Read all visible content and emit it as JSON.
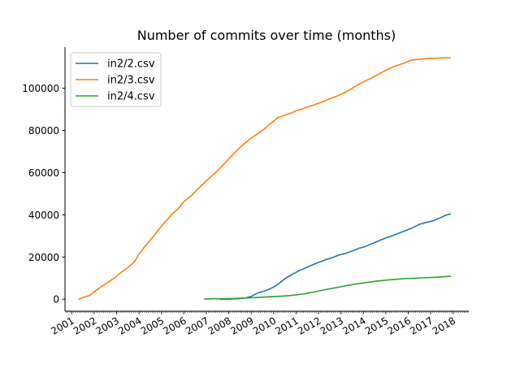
{
  "chart_data": {
    "type": "line",
    "title": "Number of commits over time (months)",
    "xlabel": "",
    "ylabel": "",
    "xlim": [
      2000.7,
      2018.7
    ],
    "ylim": [
      -5700,
      119500
    ],
    "x_ticks": [
      "2001",
      "2002",
      "2003",
      "2004",
      "2005",
      "2006",
      "2007",
      "2008",
      "2009",
      "2010",
      "2011",
      "2012",
      "2013",
      "2014",
      "2015",
      "2016",
      "2017",
      "2018"
    ],
    "y_ticks": [
      "0",
      "20000",
      "40000",
      "60000",
      "80000",
      "100000"
    ],
    "y_tick_values": [
      0,
      20000,
      40000,
      60000,
      80000,
      100000
    ],
    "grid": false,
    "legend_position": "top-left",
    "series": [
      {
        "name": "in2/2.csv",
        "color": "#1f77b4",
        "x": [
          2007.6,
          2008.0,
          2008.5,
          2008.8,
          2009.0,
          2009.3,
          2009.6,
          2009.9,
          2010.2,
          2010.5,
          2010.8,
          2011.1,
          2011.4,
          2011.7,
          2012.0,
          2012.3,
          2012.6,
          2012.9,
          2013.2,
          2013.5,
          2013.8,
          2014.1,
          2014.4,
          2014.7,
          2015.0,
          2015.3,
          2015.6,
          2015.9,
          2016.2,
          2016.5,
          2016.8,
          2017.1,
          2017.4,
          2017.7,
          2017.9
        ],
        "y": [
          0,
          0,
          300,
          700,
          1300,
          3000,
          3900,
          5200,
          7000,
          9700,
          11600,
          13300,
          14700,
          16100,
          17400,
          18700,
          19600,
          20900,
          21700,
          22800,
          24100,
          25000,
          26400,
          27700,
          29000,
          30100,
          31400,
          32600,
          33900,
          35500,
          36400,
          37100,
          38500,
          39900,
          40400
        ]
      },
      {
        "name": "in2/3.csv",
        "color": "#ff7f0e",
        "x": [
          2001.3,
          2001.5,
          2001.8,
          2002.0,
          2002.3,
          2002.6,
          2002.9,
          2003.2,
          2003.5,
          2003.8,
          2004.0,
          2004.3,
          2004.6,
          2004.9,
          2005.2,
          2005.5,
          2005.8,
          2006.0,
          2006.3,
          2006.6,
          2006.9,
          2007.2,
          2007.5,
          2007.8,
          2008.1,
          2008.4,
          2008.7,
          2009.0,
          2009.3,
          2009.6,
          2009.9,
          2010.2,
          2010.5,
          2010.8,
          2011.0,
          2011.3,
          2011.6,
          2011.9,
          2012.2,
          2012.5,
          2012.8,
          2013.1,
          2013.4,
          2013.7,
          2014.0,
          2014.3,
          2014.6,
          2014.9,
          2015.2,
          2015.5,
          2015.8,
          2016.1,
          2016.4,
          2016.7,
          2017.0,
          2017.3,
          2017.6,
          2017.9
        ],
        "y": [
          0,
          800,
          1800,
          3500,
          5800,
          7900,
          10000,
          12700,
          14900,
          17800,
          21400,
          25500,
          29300,
          33300,
          37100,
          40600,
          43500,
          46200,
          48700,
          52000,
          55100,
          58000,
          60900,
          64200,
          67600,
          70900,
          73800,
          76400,
          78500,
          80700,
          83600,
          86100,
          87300,
          88300,
          89300,
          90300,
          91400,
          92400,
          93700,
          95000,
          96200,
          97600,
          99300,
          101300,
          103000,
          104500,
          106200,
          108000,
          109600,
          110800,
          111900,
          113200,
          113700,
          114000,
          114200,
          114300,
          114400,
          114500
        ]
      },
      {
        "name": "in2/4.csv",
        "color": "#2ca02c",
        "x": [
          2006.9,
          2007.3,
          2007.7,
          2008.2,
          2008.6,
          2009.0,
          2009.4,
          2009.8,
          2010.2,
          2010.6,
          2011.0,
          2011.4,
          2011.8,
          2012.2,
          2012.6,
          2013.0,
          2013.4,
          2013.8,
          2014.2,
          2014.6,
          2015.0,
          2015.4,
          2015.8,
          2016.2,
          2016.6,
          2017.0,
          2017.4,
          2017.9
        ],
        "y": [
          0,
          200,
          200,
          300,
          500,
          700,
          900,
          1100,
          1300,
          1600,
          2000,
          2600,
          3400,
          4300,
          5100,
          5900,
          6700,
          7400,
          8000,
          8600,
          9000,
          9400,
          9700,
          9900,
          10100,
          10300,
          10500,
          10900
        ]
      }
    ]
  }
}
